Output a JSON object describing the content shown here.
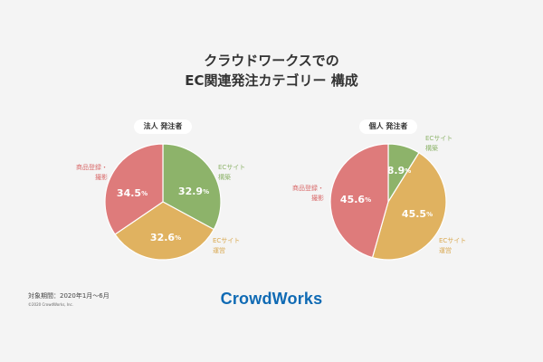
{
  "title_lines": [
    "クラウドワークスでの",
    "EC関連発注カテゴリー 構成"
  ],
  "colors": {
    "ec_site": "#8db36a",
    "operation": "#e0b260",
    "product": "#de7b7b",
    "label_ec_site": "#8db36a",
    "label_operation": "#d9a84f",
    "label_product": "#d96a6a"
  },
  "chart_data": [
    {
      "type": "pie",
      "title": "法人 発注者",
      "slices": [
        {
          "key": "ec_site",
          "label": [
            "ECサイト",
            "構築"
          ],
          "value": 32.9,
          "display": "32.9",
          "unit": "%"
        },
        {
          "key": "operation",
          "label": [
            "ECサイト",
            "運営"
          ],
          "value": 32.6,
          "display": "32.6",
          "unit": "%"
        },
        {
          "key": "product",
          "label": [
            "商品登録・",
            "撮影"
          ],
          "value": 34.5,
          "display": "34.5",
          "unit": "%"
        }
      ]
    },
    {
      "type": "pie",
      "title": "個人 発注者",
      "slices": [
        {
          "key": "ec_site",
          "label": [
            "ECサイト",
            "構築"
          ],
          "value": 8.9,
          "display": "8.9",
          "unit": "%"
        },
        {
          "key": "operation",
          "label": [
            "ECサイト",
            "運営"
          ],
          "value": 45.5,
          "display": "45.5",
          "unit": "%"
        },
        {
          "key": "product",
          "label": [
            "商品登録・",
            "撮影"
          ],
          "value": 45.6,
          "display": "45.6",
          "unit": "%"
        }
      ]
    }
  ],
  "footer": {
    "period": "対象期間：2020年1月～6月",
    "copyright": "©2020 CrowdWorks, Inc."
  },
  "logo_text": "CrowdWorks"
}
